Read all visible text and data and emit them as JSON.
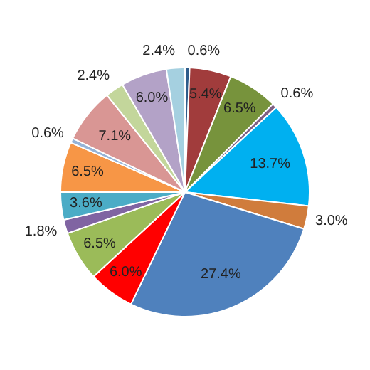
{
  "chart_data": {
    "type": "pie",
    "categories": [
      null,
      null,
      null,
      null,
      null,
      null,
      null,
      null,
      null,
      null,
      null,
      null,
      null,
      null,
      null,
      null,
      null
    ],
    "values": [
      0.6,
      5.4,
      6.5,
      0.6,
      13.7,
      3.0,
      27.4,
      6.0,
      6.5,
      1.8,
      3.6,
      6.5,
      0.6,
      7.1,
      2.4,
      6.0,
      2.4
    ],
    "value_labels": [
      "0.6%",
      "5.4%",
      "6.5%",
      "0.6%",
      "13.7%",
      "3.0%",
      "27.4%",
      "6.0%",
      "6.5%",
      "1.8%",
      "3.6%",
      "6.5%",
      "0.6%",
      "7.1%",
      "2.4%",
      "6.0%",
      "2.4%"
    ],
    "colors": [
      "#2e5c8a",
      "#a13c3c",
      "#77933c",
      "#7f6084",
      "#00b0f0",
      "#d07c3c",
      "#4f81bd",
      "#ff0000",
      "#9bbb59",
      "#8064a2",
      "#4bacc6",
      "#f79646",
      "#95b3d7",
      "#d99694",
      "#c3d69b",
      "#b3a2c7",
      "#a5d0e0"
    ],
    "legend": false
  }
}
